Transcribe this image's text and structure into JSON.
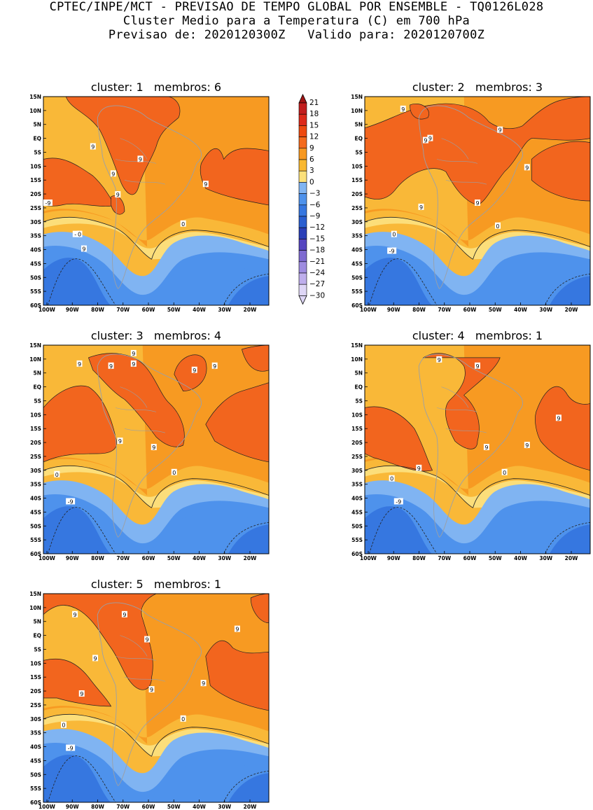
{
  "header": {
    "line1": "CPTEC/INPE/MCT - PREVISAO DE TEMPO GLOBAL POR ENSEMBLE - TQ0126L028",
    "line2": "Cluster Medio para a Temperatura (C) em 700 hPa",
    "line3": "Previsao de: 2020120300Z   Valido para: 2020120700Z"
  },
  "colorbar": {
    "labels": [
      "21",
      "18",
      "15",
      "12",
      "9",
      "6",
      "3",
      "0",
      "-3",
      "-6",
      "-9",
      "-12",
      "-15",
      "-18",
      "-21",
      "-24",
      "-27",
      "-30"
    ],
    "colors": [
      "#a01515",
      "#c21e1e",
      "#dd2a1a",
      "#ee4a10",
      "#f46a1c",
      "#f79820",
      "#f9b830",
      "#fbe07a",
      "#80b4f2",
      "#4e92ec",
      "#3677e0",
      "#2a5fd0",
      "#2a3fb8",
      "#5545c0",
      "#7e6ad0",
      "#9e8ce0",
      "#beaeec",
      "#ded6f6"
    ]
  },
  "chart_data": [
    {
      "type": "heatmap",
      "title": "cluster: 1   membros: 6",
      "cluster": 1,
      "membros": 6,
      "x_ticks": [
        "100W",
        "90W",
        "80W",
        "70W",
        "60W",
        "50W",
        "40W",
        "30W",
        "20W"
      ],
      "y_ticks": [
        "15N",
        "10N",
        "5N",
        "EQ",
        "5S",
        "10S",
        "15S",
        "20S",
        "25S",
        "30S",
        "35S",
        "40S",
        "45S",
        "50S",
        "55S",
        "60S"
      ],
      "xlim": [
        -100,
        -12
      ],
      "ylim": [
        -60,
        15
      ],
      "contour_labels": [
        "9",
        "9",
        "9",
        "9",
        "9",
        "-9",
        "9",
        "-9",
        "0",
        "0"
      ],
      "contour_levels": [
        9,
        0,
        -9
      ]
    },
    {
      "type": "heatmap",
      "title": "cluster: 2   membros: 3",
      "cluster": 2,
      "membros": 3,
      "x_ticks": [
        "100W",
        "90W",
        "80W",
        "70W",
        "60W",
        "50W",
        "40W",
        "30W",
        "20W"
      ],
      "y_ticks": [
        "15N",
        "10N",
        "5N",
        "EQ",
        "5S",
        "10S",
        "15S",
        "20S",
        "25S",
        "30S",
        "35S",
        "40S",
        "45S",
        "50S",
        "55S",
        "60S"
      ],
      "xlim": [
        -100,
        -12
      ],
      "ylim": [
        -60,
        15
      ],
      "contour_labels": [
        "9",
        "9",
        "9",
        "9",
        "9",
        "9",
        "9",
        "-9",
        "0",
        "0"
      ],
      "contour_levels": [
        9,
        0,
        -9
      ]
    },
    {
      "type": "heatmap",
      "title": "cluster: 3   membros: 4",
      "cluster": 3,
      "membros": 4,
      "x_ticks": [
        "100W",
        "90W",
        "80W",
        "70W",
        "60W",
        "50W",
        "40W",
        "30W",
        "20W"
      ],
      "y_ticks": [
        "15N",
        "10N",
        "5N",
        "EQ",
        "5S",
        "10S",
        "15S",
        "20S",
        "25S",
        "30S",
        "35S",
        "40S",
        "45S",
        "50S",
        "55S",
        "60S"
      ],
      "xlim": [
        -100,
        -12
      ],
      "ylim": [
        -60,
        15
      ],
      "contour_labels": [
        "9",
        "9",
        "9",
        "9",
        "9",
        "9",
        "9",
        "9",
        "-9",
        "0",
        "0"
      ],
      "contour_levels": [
        9,
        0,
        -9
      ]
    },
    {
      "type": "heatmap",
      "title": "cluster: 4   membros: 1",
      "cluster": 4,
      "membros": 1,
      "x_ticks": [
        "100W",
        "90W",
        "80W",
        "70W",
        "60W",
        "50W",
        "40W",
        "30W",
        "20W"
      ],
      "y_ticks": [
        "15N",
        "10N",
        "5N",
        "EQ",
        "5S",
        "10S",
        "15S",
        "20S",
        "25S",
        "30S",
        "35S",
        "40S",
        "45S",
        "50S",
        "55S",
        "60S"
      ],
      "xlim": [
        -100,
        -12
      ],
      "ylim": [
        -60,
        15
      ],
      "contour_labels": [
        "9",
        "9",
        "9",
        "9",
        "9",
        "9",
        "-9",
        "0",
        "0"
      ],
      "contour_levels": [
        9,
        0,
        -9
      ]
    },
    {
      "type": "heatmap",
      "title": "cluster: 5   membros: 1",
      "cluster": 5,
      "membros": 1,
      "x_ticks": [
        "100W",
        "90W",
        "80W",
        "70W",
        "60W",
        "50W",
        "40W",
        "30W",
        "20W"
      ],
      "y_ticks": [
        "15N",
        "10N",
        "5N",
        "EQ",
        "5S",
        "10S",
        "15S",
        "20S",
        "25S",
        "30S",
        "35S",
        "40S",
        "45S",
        "50S",
        "55S",
        "60S"
      ],
      "xlim": [
        -100,
        -12
      ],
      "ylim": [
        -60,
        15
      ],
      "contour_labels": [
        "9",
        "9",
        "9",
        "9",
        "9",
        "9",
        "9",
        "9",
        "-9",
        "0",
        "0"
      ],
      "contour_levels": [
        9,
        0,
        -9
      ]
    }
  ]
}
